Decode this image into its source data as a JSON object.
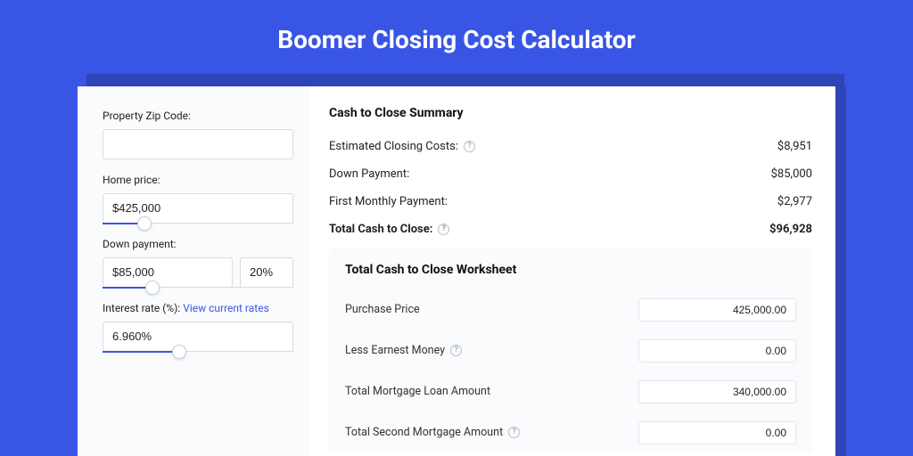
{
  "title": "Boomer Closing Cost Calculator",
  "colors": {
    "page_bg": "#3955e5",
    "shadow": "#2e44b7",
    "card_bg": "#ffffff",
    "panel_bg": "#fafbfd",
    "accent": "#3955e5",
    "border": "#d7dbe3",
    "text": "#222222",
    "muted": "#8a8f9b"
  },
  "form": {
    "zip_label": "Property Zip Code:",
    "zip_value": "",
    "price_label": "Home price:",
    "price_value": "$425,000",
    "price_slider_pct": 22,
    "down_label": "Down payment:",
    "down_value": "$85,000",
    "down_pct_value": "20%",
    "down_slider_pct": 26,
    "rate_label": "Interest rate (%): ",
    "rate_link": "View current rates",
    "rate_value": "6.960%",
    "rate_slider_pct": 40
  },
  "summary": {
    "title": "Cash to Close Summary",
    "rows": [
      {
        "label": "Estimated Closing Costs:",
        "help": true,
        "value": "$8,951",
        "bold": false
      },
      {
        "label": "Down Payment:",
        "help": false,
        "value": "$85,000",
        "bold": false
      },
      {
        "label": "First Monthly Payment:",
        "help": false,
        "value": "$2,977",
        "bold": false
      },
      {
        "label": "Total Cash to Close:",
        "help": true,
        "value": "$96,928",
        "bold": true
      }
    ]
  },
  "worksheet": {
    "title": "Total Cash to Close Worksheet",
    "rows": [
      {
        "label": "Purchase Price",
        "help": false,
        "value": "425,000.00"
      },
      {
        "label": "Less Earnest Money",
        "help": true,
        "value": "0.00"
      },
      {
        "label": "Total Mortgage Loan Amount",
        "help": false,
        "value": "340,000.00"
      },
      {
        "label": "Total Second Mortgage Amount",
        "help": true,
        "value": "0.00"
      }
    ]
  }
}
